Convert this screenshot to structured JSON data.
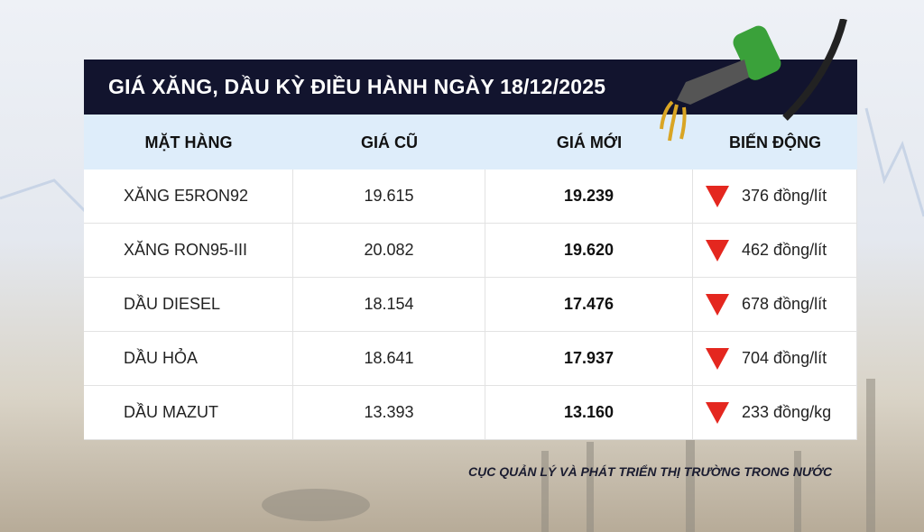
{
  "title": "GIÁ XĂNG, DẦU KỲ ĐIỀU HÀNH NGÀY 18/12/2025",
  "columns": [
    "MẶT HÀNG",
    "GIÁ CŨ",
    "GIÁ MỚI",
    "BIẾN ĐỘNG"
  ],
  "rows": [
    {
      "item": "XĂNG E5RON92",
      "old": "19.615",
      "new": "19.239",
      "change": "376 đồng/lít",
      "direction": "down"
    },
    {
      "item": "XĂNG RON95-III",
      "old": "20.082",
      "new": "19.620",
      "change": "462 đồng/lít",
      "direction": "down"
    },
    {
      "item": "DẦU DIESEL",
      "old": "18.154",
      "new": "17.476",
      "change": "678 đồng/lít",
      "direction": "down"
    },
    {
      "item": "DẦU HỎA",
      "old": "18.641",
      "new": "17.937",
      "change": "704 đồng/lít",
      "direction": "down"
    },
    {
      "item": "DẦU MAZUT",
      "old": "13.393",
      "new": "13.160",
      "change": "233 đồng/kg",
      "direction": "down"
    }
  ],
  "source": "CỤC QUẢN LÝ VÀ PHÁT TRIỂN THỊ TRƯỜNG TRONG NƯỚC",
  "colors": {
    "header": "#12142e",
    "column_header": "#deedfa",
    "down": "#e4271f"
  }
}
